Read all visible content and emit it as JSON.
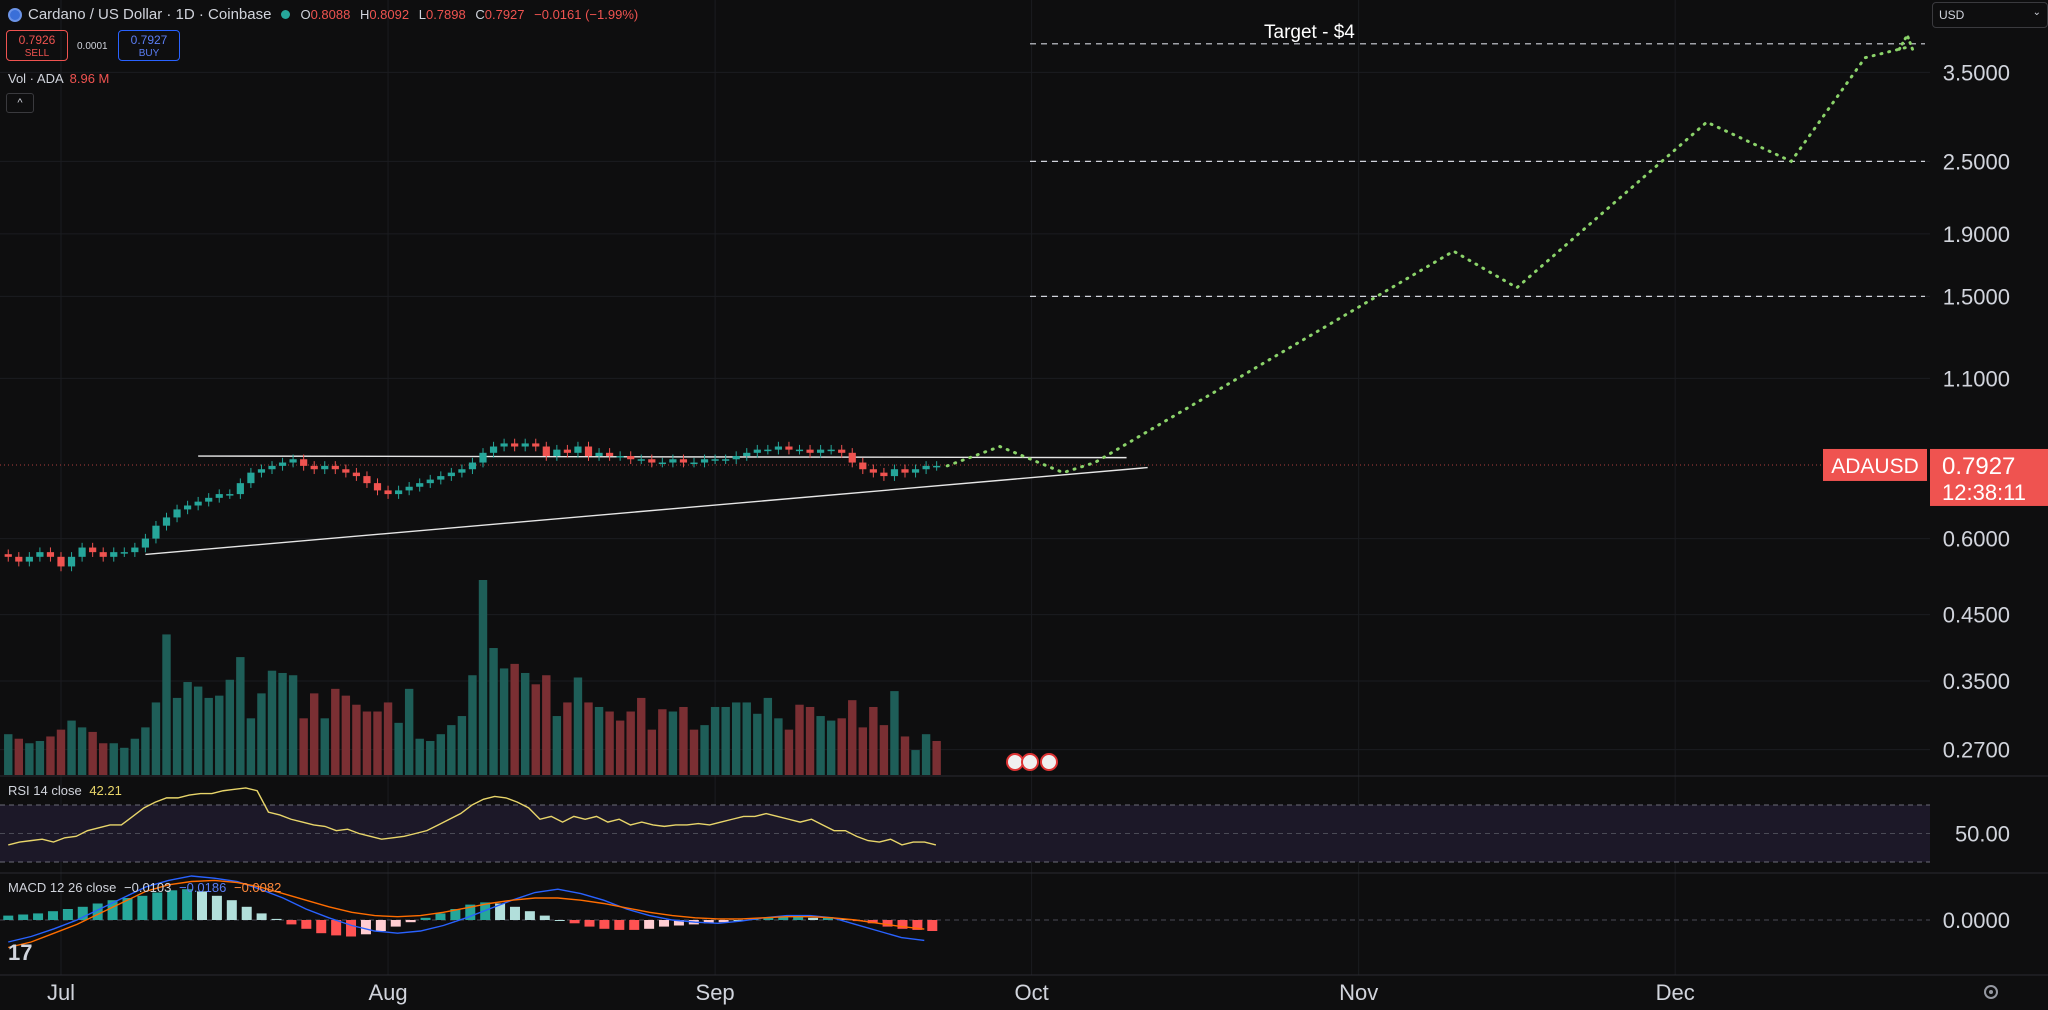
{
  "header": {
    "symbol": "Cardano / US Dollar · 1D · Coinbase",
    "ohlc": {
      "o_label": "O",
      "o": "0.8088",
      "h_label": "H",
      "h": "0.8092",
      "l_label": "L",
      "l": "0.7898",
      "c_label": "C",
      "c": "0.7927",
      "change": "−0.0161 (−1.99%)"
    },
    "sell_price": "0.7926",
    "sell_label": "SELL",
    "buy_price": "0.7927",
    "buy_label": "BUY",
    "spread": "0.0001",
    "volume_label": "Vol · ADA",
    "volume_value": "8.96 M",
    "currency": "USD"
  },
  "colors": {
    "up": "#26a69a",
    "down": "#ef5350",
    "projection": "#8bd36a",
    "rsi": "#e8d56a",
    "macd": "#2962ff",
    "signal": "#ff6d00",
    "background": "#0e0e0f"
  },
  "chart_data": {
    "type": "candlestick",
    "yscale": "log",
    "y_ticks": [
      "3.5000",
      "2.5000",
      "1.9000",
      "1.5000",
      "1.1000",
      "0.6000",
      "0.4500",
      "0.3500",
      "0.2700"
    ],
    "y_tick_values": [
      3.5,
      2.5,
      1.9,
      1.5,
      1.1,
      0.6,
      0.45,
      0.35,
      0.27
    ],
    "ylim": [
      0.25,
      4.3
    ],
    "x_ticks": [
      "Jul",
      "Aug",
      "Sep",
      "Oct",
      "Nov",
      "Dec"
    ],
    "x_tick_days": [
      0,
      31,
      62,
      92,
      123,
      153
    ],
    "x_range_days": [
      -5,
      182
    ],
    "candles_start_day": -5,
    "candles_close": [
      0.56,
      0.55,
      0.56,
      0.57,
      0.56,
      0.54,
      0.56,
      0.58,
      0.57,
      0.56,
      0.57,
      0.57,
      0.58,
      0.6,
      0.63,
      0.65,
      0.67,
      0.68,
      0.69,
      0.7,
      0.71,
      0.71,
      0.74,
      0.77,
      0.78,
      0.79,
      0.8,
      0.81,
      0.79,
      0.78,
      0.79,
      0.78,
      0.77,
      0.76,
      0.74,
      0.72,
      0.71,
      0.72,
      0.73,
      0.74,
      0.75,
      0.76,
      0.77,
      0.78,
      0.8,
      0.83,
      0.85,
      0.86,
      0.85,
      0.86,
      0.85,
      0.82,
      0.84,
      0.83,
      0.85,
      0.82,
      0.83,
      0.82,
      0.82,
      0.81,
      0.81,
      0.8,
      0.8,
      0.81,
      0.8,
      0.8,
      0.81,
      0.81,
      0.81,
      0.82,
      0.83,
      0.84,
      0.84,
      0.85,
      0.84,
      0.84,
      0.83,
      0.84,
      0.84,
      0.83,
      0.8,
      0.78,
      0.77,
      0.76,
      0.78,
      0.77,
      0.78,
      0.79,
      0.79
    ],
    "volume_millions": [
      18,
      16,
      14,
      15,
      17,
      20,
      24,
      21,
      19,
      14,
      14,
      12,
      16,
      21,
      32,
      62,
      34,
      41,
      39,
      34,
      35,
      42,
      52,
      25,
      36,
      46,
      45,
      44,
      25,
      36,
      25,
      38,
      35,
      31,
      28,
      28,
      32,
      23,
      38,
      16,
      15,
      18,
      22,
      26,
      44,
      86,
      56,
      47,
      49,
      45,
      40,
      44,
      26,
      32,
      43,
      32,
      30,
      28,
      24,
      28,
      34,
      20,
      29,
      28,
      30,
      20,
      22,
      30,
      30,
      32,
      32,
      27,
      34,
      25,
      20,
      31,
      30,
      26,
      24,
      25,
      33,
      21,
      30,
      22,
      37,
      17,
      11,
      18,
      15
    ],
    "volume_up": [
      true,
      false,
      true,
      true,
      false,
      false,
      true,
      true,
      false,
      false,
      true,
      true,
      true,
      true,
      true,
      true,
      true,
      true,
      true,
      true,
      true,
      true,
      true,
      true,
      true,
      true,
      true,
      true,
      false,
      false,
      true,
      false,
      false,
      false,
      false,
      false,
      false,
      true,
      true,
      true,
      true,
      true,
      true,
      true,
      true,
      true,
      true,
      true,
      false,
      true,
      false,
      false,
      true,
      false,
      true,
      false,
      true,
      false,
      false,
      false,
      false,
      false,
      false,
      true,
      false,
      false,
      true,
      true,
      true,
      true,
      true,
      true,
      true,
      true,
      false,
      false,
      false,
      true,
      true,
      false,
      false,
      false,
      false,
      false,
      true,
      false,
      true,
      true,
      false
    ],
    "current_price_label": "ADAUSD",
    "current_price": "0.7927",
    "countdown": "12:38:11",
    "target_label": "Target - $4",
    "target_levels": [
      3.9,
      2.5,
      1.5
    ],
    "resistance_line": {
      "x": [
        13,
        101
      ],
      "y": [
        0.82,
        0.815
      ]
    },
    "support_line": {
      "x": [
        8,
        103
      ],
      "y": [
        0.565,
        0.785
      ]
    },
    "projection_path": {
      "x": [
        84,
        89,
        95,
        98,
        132,
        138,
        156,
        164,
        171,
        175
      ],
      "y": [
        0.79,
        0.85,
        0.77,
        0.8,
        1.78,
        1.55,
        2.9,
        2.5,
        3.7,
        3.85
      ]
    },
    "rsi": {
      "label": "RSI 14 close",
      "value": "42.21",
      "tick": "50.00",
      "series": [
        42,
        44,
        45,
        46,
        44,
        47,
        48,
        52,
        54,
        56,
        56,
        62,
        68,
        72,
        75,
        75,
        77,
        78,
        78,
        80,
        81,
        82,
        80,
        65,
        63,
        60,
        58,
        56,
        55,
        52,
        53,
        50,
        48,
        46,
        47,
        48,
        50,
        52,
        56,
        60,
        64,
        70,
        74,
        76,
        75,
        72,
        68,
        60,
        62,
        58,
        62,
        60,
        62,
        58,
        60,
        56,
        58,
        56,
        55,
        56,
        56,
        57,
        56,
        58,
        60,
        62,
        62,
        64,
        62,
        60,
        58,
        60,
        56,
        52,
        52,
        48,
        45,
        44,
        46,
        42,
        44,
        44,
        42
      ]
    },
    "macd": {
      "label": "MACD 12 26 close",
      "v1": "−0.0103",
      "v2": "−0.0186",
      "v3": "−0.0082",
      "tick": "0.0000",
      "hist": [
        0.004,
        0.005,
        0.006,
        0.008,
        0.01,
        0.012,
        0.015,
        0.018,
        0.02,
        0.022,
        0.025,
        0.027,
        0.028,
        0.026,
        0.022,
        0.018,
        0.012,
        0.006,
        0.001,
        -0.004,
        -0.008,
        -0.012,
        -0.014,
        -0.015,
        -0.013,
        -0.01,
        -0.006,
        -0.002,
        0.002,
        0.006,
        0.01,
        0.014,
        0.016,
        0.015,
        0.012,
        0.008,
        0.004,
        0.0,
        -0.003,
        -0.006,
        -0.008,
        -0.009,
        -0.009,
        -0.008,
        -0.006,
        -0.005,
        -0.004,
        -0.003,
        -0.002,
        0.0,
        0.001,
        0.002,
        0.003,
        0.003,
        0.002,
        0.002,
        0.001,
        -0.001,
        -0.003,
        -0.006,
        -0.008,
        -0.009,
        -0.01
      ],
      "macd_line": [
        -0.02,
        -0.015,
        -0.008,
        0.0,
        0.01,
        0.02,
        0.03,
        0.036,
        0.04,
        0.038,
        0.035,
        0.028,
        0.02,
        0.01,
        0.002,
        -0.005,
        -0.01,
        -0.012,
        -0.01,
        -0.005,
        0.002,
        0.01,
        0.018,
        0.025,
        0.028,
        0.024,
        0.018,
        0.01,
        0.004,
        0.0,
        -0.002,
        -0.003,
        -0.001,
        0.002,
        0.004,
        0.004,
        0.002,
        -0.004,
        -0.01,
        -0.016,
        -0.0186
      ],
      "signal_line": [
        -0.025,
        -0.02,
        -0.012,
        -0.004,
        0.006,
        0.016,
        0.026,
        0.032,
        0.035,
        0.036,
        0.034,
        0.03,
        0.024,
        0.018,
        0.012,
        0.007,
        0.004,
        0.003,
        0.004,
        0.007,
        0.011,
        0.015,
        0.018,
        0.02,
        0.02,
        0.018,
        0.015,
        0.011,
        0.007,
        0.004,
        0.002,
        0.001,
        0.001,
        0.002,
        0.003,
        0.003,
        0.002,
        0.0,
        -0.003,
        -0.006,
        -0.0082
      ]
    }
  }
}
